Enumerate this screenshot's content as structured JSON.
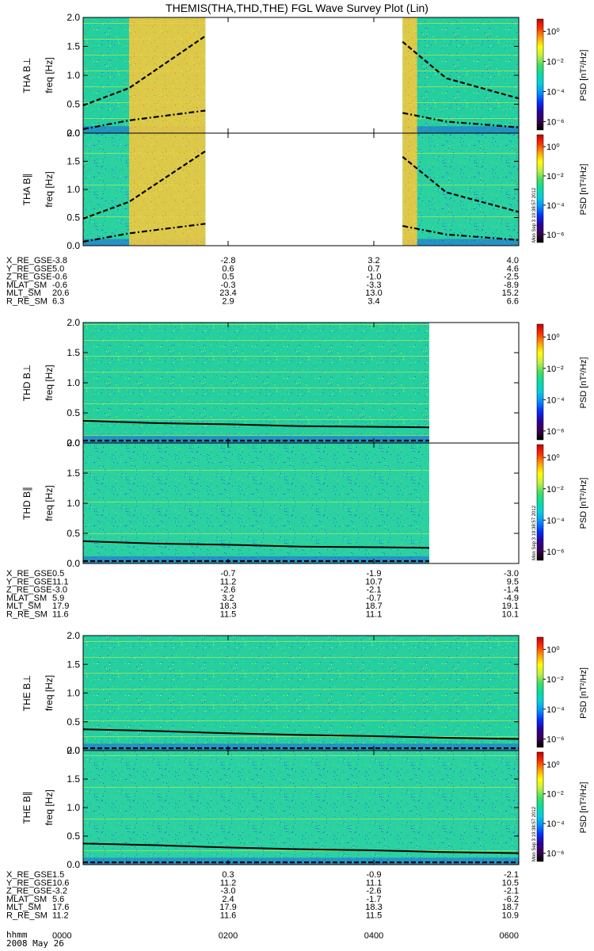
{
  "title": "THEMIS(THA,THD,THE) FGL Wave Survey Plot (Lin)",
  "date_label": "2008 May 26",
  "time_row_label": "hhmm",
  "time_ticks": [
    "0000",
    "0200",
    "0400",
    "0600"
  ],
  "stamp": "Mon Sep 3 19:38:57 2012",
  "colorbar": {
    "label": "PSD [nT²/Hz]",
    "ticks": [
      "10⁰",
      "10⁻²",
      "10⁻⁴",
      "10⁻⁶"
    ],
    "palette": [
      "#000000",
      "#3b0050",
      "#2a00a0",
      "#0030ff",
      "#0090ff",
      "#00d0e0",
      "#00e0a0",
      "#40e060",
      "#c0f040",
      "#ffff00",
      "#ffa000",
      "#ff3000",
      "#c80000"
    ]
  },
  "chart_data": [
    {
      "type": "heatmap",
      "probe": "THA",
      "panels": [
        "THA B⊥",
        "THA B∥"
      ],
      "ylabel": "freq [Hz]",
      "yticks": [
        "0.0",
        "0.5",
        "1.0",
        "1.5",
        "2.0"
      ],
      "ylim": [
        0,
        2
      ],
      "xlim": [
        "0000",
        "0600"
      ],
      "data_intervals_hhmm": [
        [
          "0000",
          "0141"
        ],
        [
          "0424",
          "0600"
        ]
      ],
      "bright_bands_hhmm": [
        [
          "0038",
          "0141"
        ],
        [
          "0424",
          "0436"
        ]
      ],
      "lines": [
        {
          "style": "dashed",
          "t_hhmm": [
            "0000",
            "0038",
            "0141"
          ],
          "freq_hz": [
            0.48,
            0.78,
            1.68
          ]
        },
        {
          "style": "dash-dot",
          "t_hhmm": [
            "0000",
            "0038",
            "0141"
          ],
          "freq_hz": [
            0.07,
            0.22,
            0.39
          ]
        },
        {
          "style": "dashed",
          "t_hhmm": [
            "0424",
            "0500",
            "0600"
          ],
          "freq_hz": [
            1.58,
            0.95,
            0.6
          ]
        },
        {
          "style": "dash-dot",
          "t_hhmm": [
            "0424",
            "0500",
            "0600"
          ],
          "freq_hz": [
            0.35,
            0.2,
            0.1
          ]
        }
      ],
      "orbit": {
        "labels": [
          "X_RE_GSE",
          "Y_RE_GSE",
          "Z_RE_GSE",
          "MLAT_SM",
          "MLT_SM",
          "R_RE_SM"
        ],
        "values": [
          [
            "-3.8",
            "-2.8",
            "3.2",
            "4.0"
          ],
          [
            "5.0",
            "0.6",
            "0.7",
            "4.6"
          ],
          [
            "-0.6",
            "0.5",
            "-1.0",
            "-2.5"
          ],
          [
            "-0.6",
            "-0.3",
            "-3.3",
            "-8.9"
          ],
          [
            "20.6",
            "23.4",
            "13.0",
            "15.2"
          ],
          [
            "6.3",
            "2.9",
            "3.4",
            "6.6"
          ]
        ]
      }
    },
    {
      "type": "heatmap",
      "probe": "THD",
      "panels": [
        "THD B⊥",
        "THD B∥"
      ],
      "ylabel": "freq [Hz]",
      "yticks": [
        "0.0",
        "0.5",
        "1.0",
        "1.5",
        "2.0"
      ],
      "ylim": [
        0,
        2
      ],
      "xlim": [
        "0000",
        "0600"
      ],
      "data_intervals_hhmm": [
        [
          "0000",
          "0446"
        ]
      ],
      "lines": [
        {
          "style": "solid",
          "t_hhmm": [
            "0000",
            "0100",
            "0200",
            "0300",
            "0400",
            "0446"
          ],
          "freq_hz": [
            0.37,
            0.33,
            0.31,
            0.28,
            0.27,
            0.26
          ]
        },
        {
          "style": "dashed",
          "t_hhmm": [
            "0000",
            "0446"
          ],
          "freq_hz": [
            0.04,
            0.04
          ]
        }
      ],
      "orbit": {
        "labels": [
          "X_RE_GSE",
          "Y_RE_GSE",
          "Z_RE_GSE",
          "MLAT_SM",
          "MLT_SM",
          "R_RE_SM"
        ],
        "values": [
          [
            "0.5",
            "-0.7",
            "-1.9",
            "-3.0"
          ],
          [
            "11.1",
            "11.2",
            "10.7",
            "9.5"
          ],
          [
            "-3.0",
            "-2.6",
            "-2.1",
            "-1.4"
          ],
          [
            "5.9",
            "3.2",
            "-0.7",
            "-4.9"
          ],
          [
            "17.9",
            "18.3",
            "18.7",
            "19.1"
          ],
          [
            "11.6",
            "11.5",
            "11.1",
            "10.1"
          ]
        ]
      }
    },
    {
      "type": "heatmap",
      "probe": "THE",
      "panels": [
        "THE B⊥",
        "THE B∥"
      ],
      "ylabel": "freq [Hz]",
      "yticks": [
        "0.0",
        "0.5",
        "1.0",
        "1.5",
        "2.0"
      ],
      "ylim": [
        0,
        2
      ],
      "xlim": [
        "0000",
        "0600"
      ],
      "data_intervals_hhmm": [
        [
          "0000",
          "0600"
        ]
      ],
      "lines": [
        {
          "style": "solid",
          "t_hhmm": [
            "0000",
            "0100",
            "0200",
            "0300",
            "0400",
            "0500",
            "0600"
          ],
          "freq_hz": [
            0.37,
            0.34,
            0.3,
            0.27,
            0.25,
            0.22,
            0.2
          ]
        },
        {
          "style": "dashed",
          "t_hhmm": [
            "0000",
            "0600"
          ],
          "freq_hz": [
            0.04,
            0.04
          ]
        }
      ],
      "orbit": {
        "labels": [
          "X_RE_GSE",
          "Y_RE_GSE",
          "Z_RE_GSE",
          "MLAT_SM",
          "MLT_SM",
          "R_RE_SM"
        ],
        "values": [
          [
            "1.5",
            "0.3",
            "-0.9",
            "-2.1"
          ],
          [
            "10.6",
            "11.2",
            "11.1",
            "10.5"
          ],
          [
            "-3.2",
            "-3.0",
            "-2.6",
            "-2.1"
          ],
          [
            "5.6",
            "2.4",
            "-1.7",
            "-6.2"
          ],
          [
            "17.6",
            "17.9",
            "18.3",
            "18.7"
          ],
          [
            "11.2",
            "11.6",
            "11.5",
            "10.9"
          ]
        ]
      }
    }
  ]
}
